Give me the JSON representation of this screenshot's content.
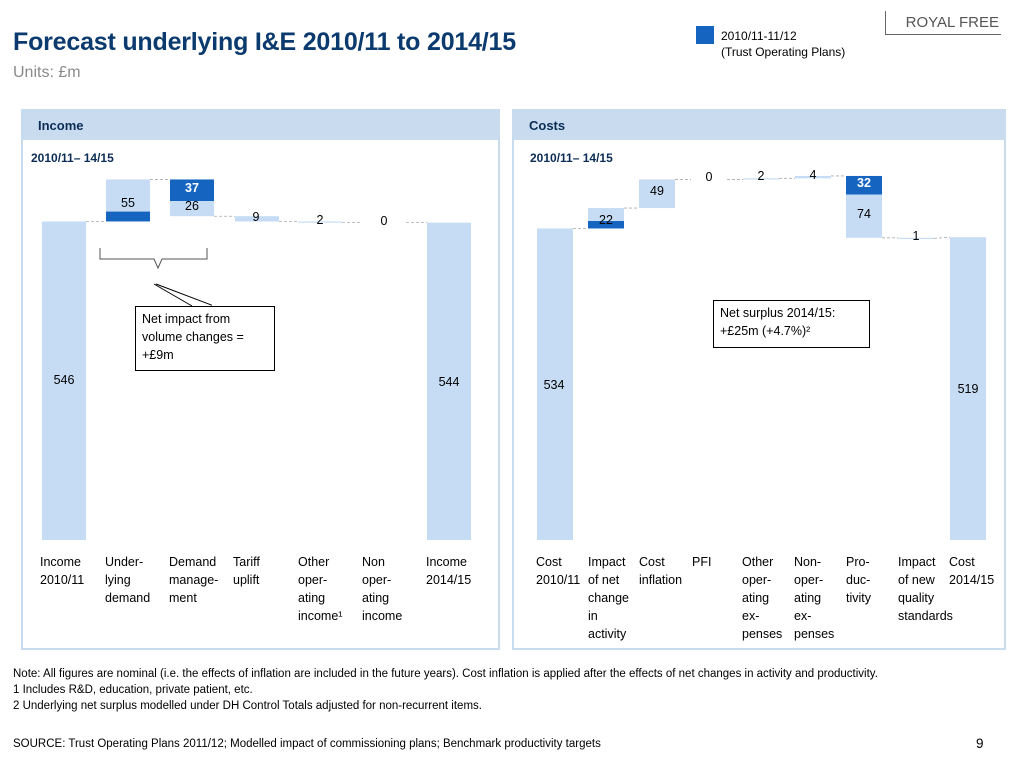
{
  "header": {
    "title": "Forecast underlying I&E 2010/11 to 2014/15",
    "units": "Units: £m",
    "brand": "ROYAL FREE",
    "legend_line1": "2010/11-11/12",
    "legend_line2": "(Trust Operating Plans)",
    "legend_color": "#1565c0"
  },
  "colors": {
    "light": "#c5dcf4",
    "dark": "#1565c0",
    "panel": "#c9dcef"
  },
  "income_panel": {
    "heading": "Income",
    "period": "2010/11– 14/15",
    "categories": [
      [
        "Income",
        "2010/11"
      ],
      [
        "Under-",
        "lying",
        "demand"
      ],
      [
        "Demand",
        "manage-",
        "ment"
      ],
      [
        "Tariff",
        "uplift"
      ],
      [
        "Other",
        "oper-",
        "ating",
        "income¹"
      ],
      [
        "Non",
        "oper-",
        "ating",
        "income"
      ],
      [
        "Income",
        "2014/15"
      ]
    ],
    "callout": [
      "Net impact from",
      "volume changes =",
      "+£9m"
    ]
  },
  "costs_panel": {
    "heading": "Costs",
    "period": "2010/11– 14/15",
    "categories": [
      [
        "Cost",
        "2010/11"
      ],
      [
        "Impact",
        "of net",
        "change",
        "in",
        "activity"
      ],
      [
        "Cost",
        "inflation"
      ],
      [
        "PFI"
      ],
      [
        "Other",
        "oper-",
        "ating",
        "ex-",
        "penses"
      ],
      [
        "Non-",
        "oper-",
        "ating",
        "ex-",
        "penses"
      ],
      [
        "Pro-",
        "duc-",
        "tivity"
      ],
      [
        "Impact",
        "of new",
        "quality",
        "standards"
      ],
      [
        "Cost",
        "2014/15"
      ]
    ],
    "callout_line1": "Net surplus 2014/15:",
    "callout_line2": "+£25m (+4.7%)²"
  },
  "chart_data": [
    {
      "type": "bar",
      "subtype": "waterfall",
      "title": "Income",
      "subtitle": "2010/11– 14/15",
      "categories": [
        "Income 2010/11",
        "Underlying demand",
        "Demand management",
        "Tariff uplift",
        "Other operating income",
        "Non operating income",
        "Income 2014/15"
      ],
      "series": [
        {
          "name": "2010/11-11/12 (Trust Operating Plans)",
          "values": [
            null,
            17,
            -37,
            null,
            null,
            null,
            null
          ]
        },
        {
          "values": [
            546,
            55,
            -26,
            -9,
            -2,
            0,
            544
          ]
        }
      ]
    },
    {
      "type": "bar",
      "subtype": "waterfall",
      "title": "Costs",
      "subtitle": "2010/11– 14/15",
      "categories": [
        "Cost 2010/11",
        "Impact of net change in activity",
        "Cost inflation",
        "PFI",
        "Other operating expenses",
        "Non-operating expenses",
        "Productivity",
        "Impact of new quality standards",
        "Cost 2014/15"
      ],
      "series": [
        {
          "name": "2010/11-11/12 (Trust Operating Plans)",
          "values": [
            null,
            13,
            null,
            null,
            null,
            null,
            -32,
            null,
            null
          ]
        },
        {
          "values": [
            534,
            22,
            49,
            0,
            2,
            4,
            -74,
            -1,
            519
          ]
        }
      ]
    }
  ],
  "notes": {
    "line1": "Note: All figures are nominal (i.e. the effects of inflation are included in the future years). Cost inflation is applied after the effects of net changes in activity and productivity.",
    "line2": "1 Includes R&D, education, private patient, etc.",
    "line3": "2 Underlying net surplus modelled under DH Control Totals adjusted for non-recurrent items.",
    "source": "SOURCE: Trust Operating Plans 2011/12; Modelled impact of commissioning plans; Benchmark productivity targets",
    "page_number": "9"
  }
}
